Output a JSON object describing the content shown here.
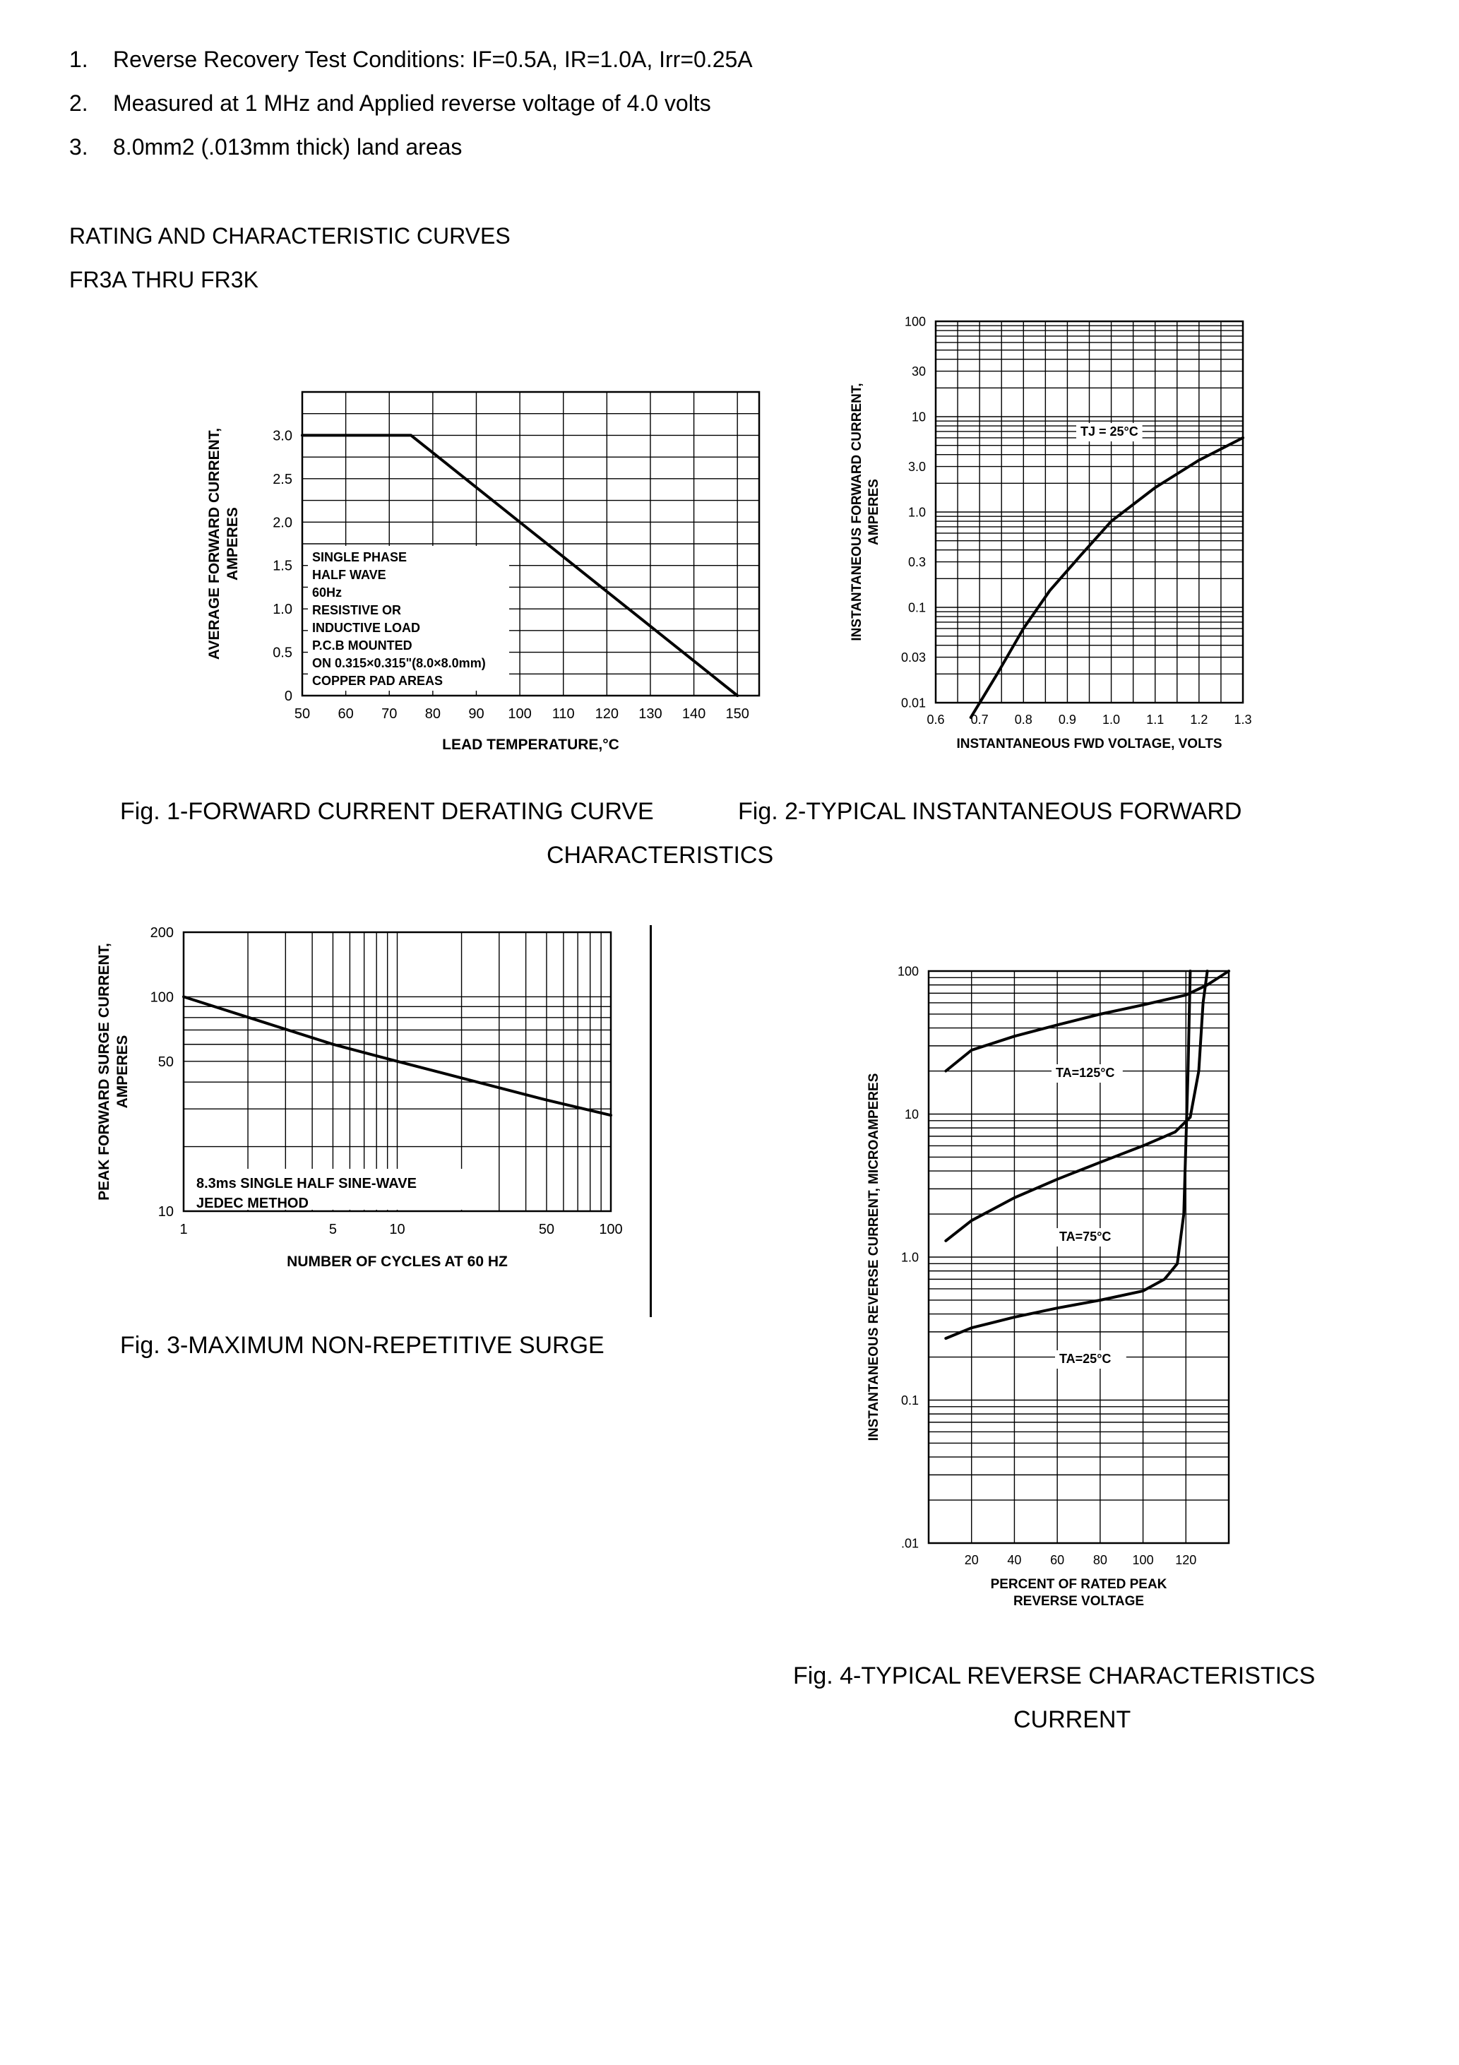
{
  "notes": [
    {
      "num": "1.",
      "text": "Reverse Recovery Test Conditions: IF=0.5A, IR=1.0A, Irr=0.25A"
    },
    {
      "num": "2.",
      "text": "Measured at 1 MHz and Applied reverse voltage of 4.0 volts"
    },
    {
      "num": "3.",
      "text": "8.0mm2 (.013mm thick) land areas"
    }
  ],
  "section": {
    "title": "RATING AND CHARACTERISTIC CURVES",
    "subtitle": "FR3A THRU FR3K"
  },
  "captions": {
    "fig1": "Fig. 1-FORWARD CURRENT DERATING CURVE",
    "fig2_line1": "Fig. 2-TYPICAL INSTANTANEOUS FORWARD",
    "fig2_line2": "CHARACTERISTICS",
    "fig3": "Fig. 3-MAXIMUM NON-REPETITIVE SURGE",
    "fig4_line1": "Fig. 4-TYPICAL REVERSE CHARACTERISTICS",
    "fig4_line2": "CURRENT"
  },
  "chart_data": [
    {
      "id": "fig1",
      "type": "line",
      "xlabel": "LEAD TEMPERATURE,°C",
      "ylabel": "AVERAGE FORWARD CURRENT,\nAMPERES",
      "xlim": [
        50,
        155
      ],
      "ylim": [
        0,
        3.5
      ],
      "x_ticks": [
        50,
        60,
        70,
        80,
        90,
        100,
        110,
        120,
        130,
        140,
        150
      ],
      "y_ticks": [
        0,
        0.5,
        1.0,
        1.5,
        2.0,
        2.5,
        3.0
      ],
      "y_tick_labels": [
        "0",
        "0.5",
        "1.0",
        "1.5",
        "2.0",
        "2.5",
        "3.0"
      ],
      "grid": true,
      "series": [
        {
          "x": [
            50,
            75,
            150
          ],
          "y": [
            3.0,
            3.0,
            0
          ]
        }
      ],
      "annotation": [
        "SINGLE PHASE",
        "HALF WAVE",
        "60Hz",
        "RESISTIVE OR",
        "INDUCTIVE LOAD",
        "P.C.B MOUNTED",
        "ON 0.315×0.315\"(8.0×8.0mm)",
        "COPPER PAD AREAS"
      ]
    },
    {
      "id": "fig2",
      "type": "line",
      "xlabel": "INSTANTANEOUS FWD VOLTAGE, VOLTS",
      "ylabel": "INSTANTANEOUS FORWARD CURRENT,\nAMPERES",
      "xlim": [
        0.6,
        1.3
      ],
      "ylim": [
        0.01,
        100
      ],
      "y_scale": "log",
      "x_ticks": [
        0.6,
        0.7,
        0.8,
        0.9,
        1.0,
        1.1,
        1.2,
        1.3
      ],
      "x_tick_labels": [
        "0.6",
        "0.7",
        "0.8",
        "0.9",
        "1.0",
        "1.1",
        "1.2",
        "1.3"
      ],
      "y_ticks": [
        0.01,
        0.03,
        0.1,
        0.3,
        1.0,
        3.0,
        10,
        30,
        100
      ],
      "y_tick_labels": [
        "0.01",
        "0.03",
        "0.1",
        "0.3",
        "1.0",
        "3.0",
        "10",
        "30",
        "100"
      ],
      "grid": true,
      "series": [
        {
          "x": [
            0.68,
            0.74,
            0.8,
            0.86,
            0.93,
            1.0,
            1.1,
            1.2,
            1.3
          ],
          "y": [
            0.007,
            0.02,
            0.06,
            0.15,
            0.35,
            0.8,
            1.8,
            3.5,
            6.0
          ]
        }
      ],
      "annotation": "TJ = 25°C"
    },
    {
      "id": "fig3",
      "type": "line",
      "xlabel": "NUMBER OF CYCLES AT 60 HZ",
      "ylabel": "PEAK FORWARD SURGE CURRENT,\nAMPERES",
      "xlim": [
        1,
        100
      ],
      "ylim": [
        10,
        200
      ],
      "x_scale": "log",
      "y_scale": "log",
      "x_ticks": [
        1,
        5,
        10,
        50,
        100
      ],
      "y_ticks": [
        10,
        50,
        100,
        200
      ],
      "grid": true,
      "series": [
        {
          "x": [
            1,
            5,
            10,
            50,
            100
          ],
          "y": [
            100,
            60,
            50,
            33,
            28
          ]
        }
      ],
      "annotation": [
        "8.3ms SINGLE HALF SINE-WAVE",
        "JEDEC METHOD"
      ]
    },
    {
      "id": "fig4",
      "type": "line",
      "xlabel": "PERCENT OF RATED PEAK\nREVERSE VOLTAGE",
      "ylabel": "INSTANTANEOUS REVERSE CURRENT, MICROAMPERES",
      "xlim": [
        0,
        140
      ],
      "ylim": [
        0.01,
        100
      ],
      "y_scale": "log",
      "x_ticks": [
        20,
        40,
        60,
        80,
        100,
        120
      ],
      "y_ticks": [
        0.01,
        0.1,
        1.0,
        10,
        100
      ],
      "y_tick_labels": [
        ".01",
        "0.1",
        "1.0",
        "10",
        "100"
      ],
      "grid": true,
      "series": [
        {
          "name": "TA=125°C",
          "x": [
            8,
            20,
            40,
            60,
            80,
            100,
            120,
            130,
            140
          ],
          "y": [
            20,
            28,
            35,
            42,
            50,
            58,
            68,
            80,
            100
          ]
        },
        {
          "name": "TA=75°C",
          "x": [
            8,
            20,
            40,
            60,
            80,
            100,
            115,
            122,
            126,
            128,
            130
          ],
          "y": [
            1.3,
            1.8,
            2.6,
            3.5,
            4.6,
            6.0,
            7.5,
            9.5,
            20,
            60,
            100
          ]
        },
        {
          "name": "TA=25°C",
          "x": [
            8,
            20,
            40,
            60,
            80,
            100,
            110,
            116,
            119,
            121,
            122
          ],
          "y": [
            0.27,
            0.32,
            0.38,
            0.44,
            0.5,
            0.58,
            0.7,
            0.9,
            2,
            20,
            100
          ]
        }
      ]
    }
  ]
}
